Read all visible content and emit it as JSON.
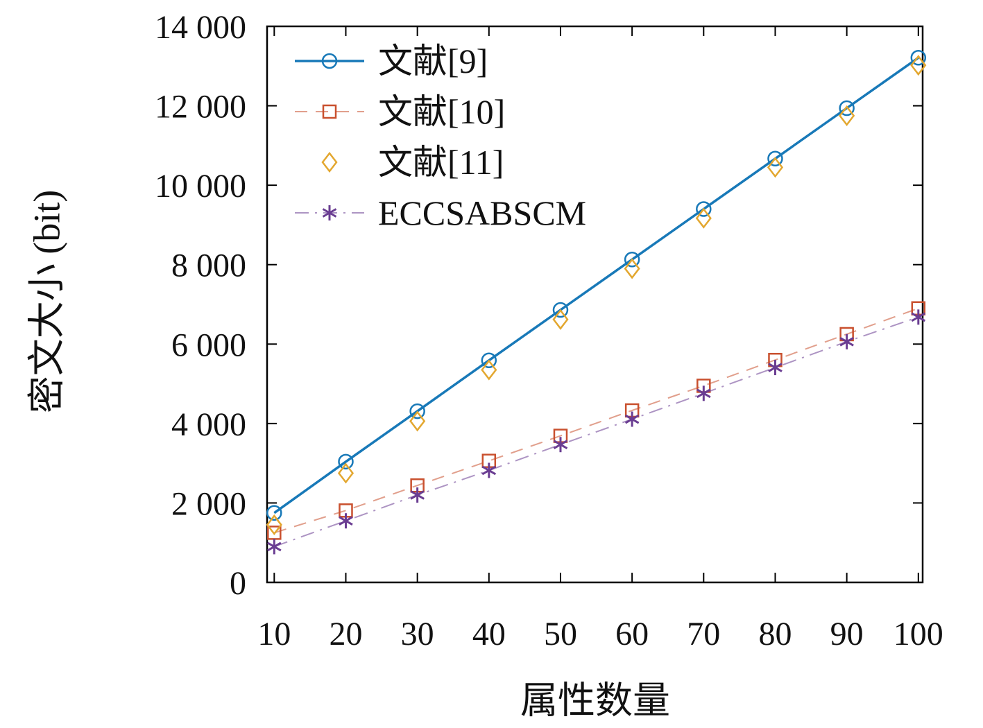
{
  "figure": {
    "background": "#ffffff",
    "axis_color": "#000000"
  },
  "chart_data": {
    "type": "line",
    "title": "",
    "xlabel": "属性数量",
    "ylabel": "密文大小 (bit)",
    "x": [
      10,
      20,
      30,
      40,
      50,
      60,
      70,
      80,
      90,
      100
    ],
    "xlim": [
      9,
      100.6
    ],
    "ylim": [
      0,
      14000
    ],
    "xticks": [
      10,
      20,
      30,
      40,
      50,
      60,
      70,
      80,
      90,
      100
    ],
    "xtick_labels": [
      "10",
      "20",
      "30",
      "40",
      "50",
      "60",
      "70",
      "80",
      "90",
      "100"
    ],
    "yticks": [
      0,
      2000,
      4000,
      6000,
      8000,
      10000,
      12000,
      14000
    ],
    "ytick_labels": [
      "0",
      "2 000",
      "4 000",
      "6 000",
      "8 000",
      "10 000",
      "12 000",
      "14 000"
    ],
    "grid": false,
    "legend_position": "top-left",
    "series": [
      {
        "name": "文献[9]",
        "color": "#1879b8",
        "line": "solid",
        "line_width": 3.5,
        "marker": "circle",
        "values": [
          1750,
          3040,
          4310,
          5590,
          6860,
          8130,
          9400,
          10670,
          11940,
          13210
        ]
      },
      {
        "name": "文献[10]",
        "color": "#c9502e",
        "line": "dashed",
        "line_width": 2,
        "marker": "square",
        "values": [
          1250,
          1810,
          2440,
          3060,
          3690,
          4330,
          4950,
          5600,
          6250,
          6900
        ]
      },
      {
        "name": "文献[11]",
        "color": "#e3a72f",
        "line": "none",
        "line_width": 2,
        "marker": "diamond",
        "values": [
          1450,
          2750,
          4060,
          5350,
          6620,
          7900,
          9170,
          10450,
          11750,
          13020
        ]
      },
      {
        "name": "ECCSABSCM",
        "color": "#6a3d92",
        "line": "dashdot",
        "line_width": 2,
        "marker": "asterisk",
        "values": [
          900,
          1550,
          2200,
          2820,
          3470,
          4110,
          4760,
          5410,
          6060,
          6680
        ]
      }
    ]
  }
}
